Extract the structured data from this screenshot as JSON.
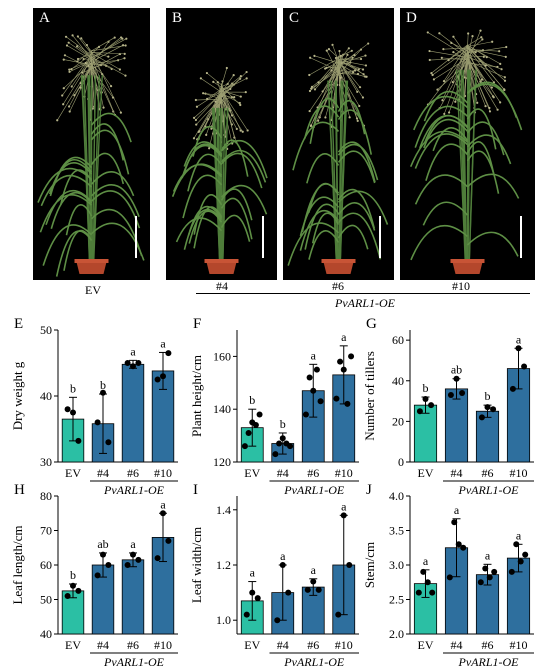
{
  "photos": [
    {
      "label": "A",
      "genotype": "EV"
    },
    {
      "label": "B",
      "genotype": "#4"
    },
    {
      "label": "C",
      "genotype": "#6"
    },
    {
      "label": "D",
      "genotype": "#10"
    }
  ],
  "group_label": "PvARL1-OE",
  "colors": {
    "ev": "#2bbfa4",
    "oe": "#2e6f9e"
  },
  "chart_data": [
    {
      "panel": "E",
      "type": "bar",
      "categories": [
        "EV",
        "#4",
        "#6",
        "#10"
      ],
      "ylabel": "Dry weight g",
      "ylim": [
        30,
        50
      ],
      "yticks": [
        30,
        40,
        50
      ],
      "values": [
        36.5,
        35.8,
        44.8,
        43.8
      ],
      "errors": [
        3.3,
        4.5,
        0.6,
        2.8
      ],
      "letters": [
        "b",
        "b",
        "a",
        "a"
      ],
      "points": [
        [
          38.0,
          37.5,
          33.2
        ],
        [
          36.0,
          40.5,
          33.0
        ],
        [
          45.0,
          44.5,
          45.0
        ],
        [
          42.5,
          43.0,
          46.5
        ]
      ]
    },
    {
      "panel": "F",
      "type": "bar",
      "categories": [
        "EV",
        "#4",
        "#6",
        "#10"
      ],
      "ylabel": "Plant height/cm",
      "ylim": [
        120,
        170
      ],
      "yticks": [
        120,
        140,
        160
      ],
      "values": [
        133,
        127,
        147,
        153
      ],
      "errors": [
        7,
        4,
        10,
        11
      ],
      "letters": [
        "b",
        "b",
        "a",
        "a"
      ],
      "points": [
        [
          126,
          131,
          135,
          134,
          138
        ],
        [
          123,
          127,
          129,
          127,
          126
        ],
        [
          138,
          152,
          147,
          155,
          143
        ],
        [
          144,
          158,
          155,
          142,
          160
        ]
      ]
    },
    {
      "panel": "G",
      "type": "bar",
      "categories": [
        "EV",
        "#4",
        "#6",
        "#10"
      ],
      "ylabel": "Number of tillers",
      "ylim": [
        0,
        65
      ],
      "yticks": [
        0,
        20,
        40,
        60
      ],
      "values": [
        28,
        36,
        25,
        46
      ],
      "errors": [
        4,
        5,
        3,
        10
      ],
      "letters": [
        "b",
        "ab",
        "b",
        "a"
      ],
      "points": [
        [
          25,
          31,
          28
        ],
        [
          33,
          41,
          34
        ],
        [
          22,
          27,
          26
        ],
        [
          36,
          56,
          47
        ]
      ]
    },
    {
      "panel": "H",
      "type": "bar",
      "categories": [
        "EV",
        "#4",
        "#6",
        "#10"
      ],
      "ylabel": "Leaf length/cm",
      "ylim": [
        40,
        80
      ],
      "yticks": [
        40,
        50,
        60,
        70,
        80
      ],
      "values": [
        52.5,
        60,
        61.5,
        68
      ],
      "errors": [
        2,
        3.5,
        2,
        7
      ],
      "letters": [
        "b",
        "ab",
        "a",
        "a"
      ],
      "points": [
        [
          51,
          54,
          52.5
        ],
        [
          57,
          63,
          60
        ],
        [
          60,
          63,
          61.5
        ],
        [
          62,
          75,
          67
        ]
      ]
    },
    {
      "panel": "I",
      "type": "bar",
      "categories": [
        "EV",
        "#4",
        "#6",
        "#10"
      ],
      "ylabel": "Leaf width/cm",
      "ylim": [
        0.95,
        1.45
      ],
      "yticks": [
        1.0,
        1.2,
        1.4
      ],
      "values": [
        1.07,
        1.1,
        1.12,
        1.2
      ],
      "errors": [
        0.07,
        0.1,
        0.03,
        0.18
      ],
      "letters": [
        "a",
        "a",
        "a",
        "a"
      ],
      "points": [
        [
          1.02,
          1.1,
          1.08
        ],
        [
          1.0,
          1.2,
          1.1
        ],
        [
          1.11,
          1.14,
          1.11
        ],
        [
          1.02,
          1.38,
          1.2
        ]
      ]
    },
    {
      "panel": "J",
      "type": "bar",
      "categories": [
        "EV",
        "#4",
        "#6",
        "#10"
      ],
      "ylabel": "Stem/cm",
      "ylim": [
        2.0,
        4.0
      ],
      "yticks": [
        2.0,
        2.5,
        3.0,
        3.5,
        4.0
      ],
      "values": [
        2.73,
        3.25,
        2.86,
        3.1
      ],
      "errors": [
        0.2,
        0.42,
        0.15,
        0.2
      ],
      "letters": [
        "a",
        "a",
        "a",
        "a"
      ],
      "points": [
        [
          2.6,
          2.9,
          2.75,
          2.6
        ],
        [
          2.82,
          3.62,
          3.3,
          3.25
        ],
        [
          2.75,
          2.95,
          2.82,
          2.9
        ],
        [
          2.9,
          3.3,
          3.05,
          3.15
        ]
      ]
    }
  ]
}
